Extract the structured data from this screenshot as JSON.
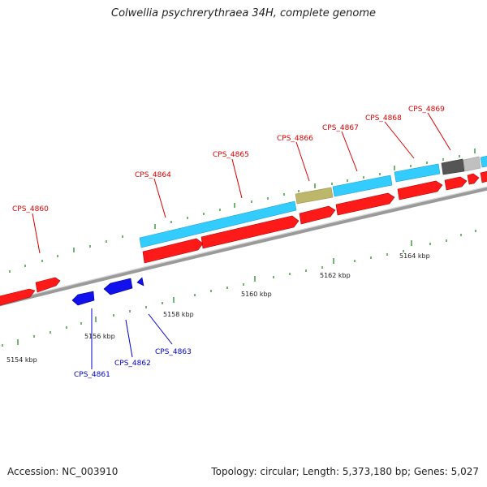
{
  "title": "Colwellia psychrerythraea 34H, complete genome",
  "footer": {
    "accession": "Accession: NC_003910",
    "summary": "Topology: circular; Length: 5,373,180 bp; Genes: 5,027"
  },
  "colors": {
    "forward_gene": "#ff0000",
    "reverse_gene": "#0000ff",
    "cds_bar": "#33ccff",
    "other_feature": "#bdb76b",
    "dark_feature": "#555555",
    "light_feature": "#c0c0c0",
    "backbone": "#888888",
    "tick": "#228822",
    "forward_label": "#dd0000",
    "reverse_label": "#0000cc"
  },
  "scale_labels": [
    "5154 kbp",
    "5156 kbp",
    "5158 kbp",
    "5160 kbp",
    "5162 kbp",
    "5164 kbp"
  ],
  "forward_labels": [
    "CPS_4860",
    "CPS_4864",
    "CPS_4865",
    "CPS_4866",
    "CPS_4867",
    "CPS_4868",
    "CPS_4869"
  ],
  "reverse_labels": [
    "CPS_4861",
    "CPS_4862",
    "CPS_4863"
  ]
}
